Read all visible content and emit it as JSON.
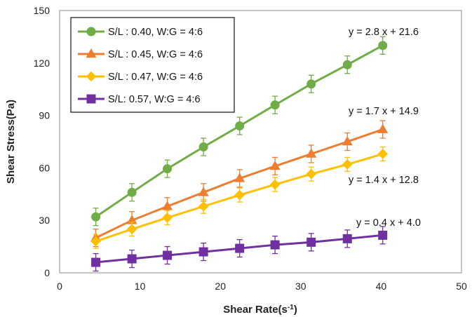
{
  "chart_data": {
    "type": "line",
    "xlabel": "Shear Rate",
    "xlabel_unit_base": "(s",
    "xlabel_unit_sup": "-1",
    "xlabel_unit_end": ")",
    "ylabel": "Shear Stress(Pa)",
    "xlim": [
      0,
      50
    ],
    "ylim": [
      0,
      150
    ],
    "xticks": [
      "0",
      "10",
      "20",
      "30",
      "40",
      "50"
    ],
    "yticks": [
      "0",
      "30",
      "60",
      "90",
      "120",
      "150"
    ],
    "legend_position": "top-left",
    "grid": false,
    "x": [
      4.5,
      9,
      13.4,
      17.9,
      22.4,
      26.8,
      31.3,
      35.8,
      40.2
    ],
    "series": [
      {
        "name": "S/L : 0.40, W:G = 4:6",
        "color": "#70ad47",
        "marker": "circle",
        "values": [
          32,
          46,
          59.5,
          72,
          84,
          96,
          108,
          119,
          130
        ],
        "error": 5,
        "equation": "y = 2.8 x + 21.6"
      },
      {
        "name": "S/L : 0.45, W:G = 4:6",
        "color": "#ed7d31",
        "marker": "triangle",
        "values": [
          20,
          30,
          38,
          46,
          54,
          61,
          68,
          75,
          82
        ],
        "error": 5,
        "equation": "y = 1.7 x + 14.9"
      },
      {
        "name": "S/L : 0.47, W:G = 4:6",
        "color": "#ffc000",
        "marker": "diamond",
        "values": [
          18,
          25,
          31.5,
          38,
          44.5,
          50.5,
          56.5,
          62,
          68
        ],
        "error": 4,
        "equation": "y = 1.4 x + 12.8"
      },
      {
        "name": "S/L: 0.57, W:G = 4:6",
        "color": "#7030a0",
        "marker": "square",
        "values": [
          6,
          8,
          10,
          12,
          14,
          16,
          17.5,
          19.5,
          21.5
        ],
        "error": 5,
        "equation": "y = 0.4 x + 4.0"
      }
    ]
  }
}
